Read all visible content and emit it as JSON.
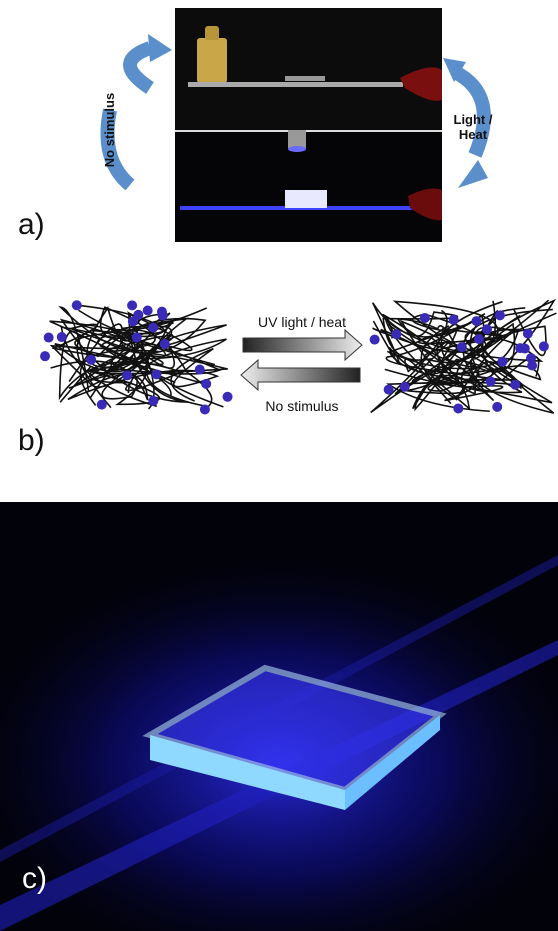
{
  "panels": [
    {
      "label": "a)",
      "left_arrow_text": "No stimulus",
      "right_arrow_text": "Light / Heat"
    },
    {
      "label": "b)",
      "forward_text": "UV light / heat",
      "reverse_text": "No stimulus"
    },
    {
      "label": "c)"
    }
  ]
}
